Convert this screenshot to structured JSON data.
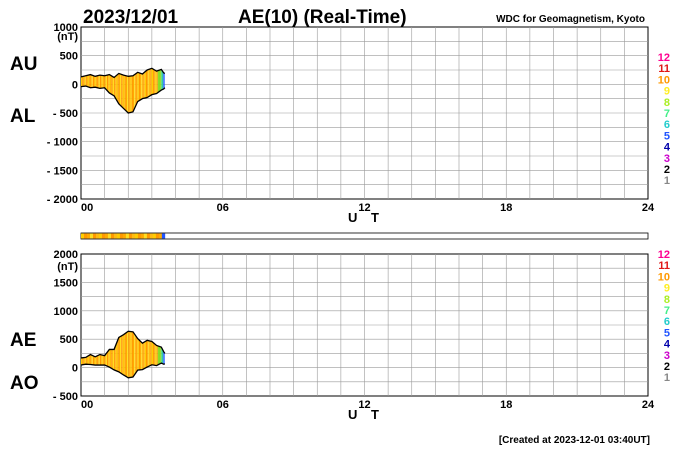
{
  "header": {
    "date": "2023/12/01",
    "title": "AE(10) (Real-Time)",
    "source": "WDC for Geomagnetism, Kyoto"
  },
  "footer": {
    "created": "[Created at 2023-12-01 03:40UT]"
  },
  "station_legend": {
    "labels": [
      "12",
      "11",
      "10",
      "9",
      "8",
      "7",
      "6",
      "5",
      "4",
      "3",
      "2",
      "1"
    ],
    "colors": [
      "#ff0090",
      "#e01818",
      "#ff9900",
      "#ffee22",
      "#aaee22",
      "#44ee88",
      "#22cccc",
      "#2255ff",
      "#0000aa",
      "#cc00cc",
      "#000000",
      "#888888"
    ]
  },
  "chart_data": [
    {
      "type": "area",
      "panel": "AU/AL",
      "labels_upper": "AU",
      "labels_lower": "AL",
      "unit": "(nT)",
      "xlabel": "U T",
      "xlim": [
        0,
        24
      ],
      "ylim": [
        -2000,
        1000
      ],
      "x_ticks": [
        "00",
        "06",
        "12",
        "18",
        "24"
      ],
      "y_ticks": [
        "1000",
        "500",
        "0",
        "- 500",
        "- 1000",
        "- 1500",
        "- 2000"
      ],
      "x": [
        0,
        0.2,
        0.4,
        0.6,
        0.8,
        1.0,
        1.2,
        1.4,
        1.6,
        1.8,
        2.0,
        2.2,
        2.4,
        2.6,
        2.8,
        3.0,
        3.2,
        3.4,
        3.5,
        3.55
      ],
      "au": [
        130,
        150,
        170,
        140,
        160,
        150,
        170,
        120,
        190,
        160,
        140,
        150,
        210,
        180,
        250,
        280,
        230,
        260,
        200,
        190
      ],
      "al": [
        -40,
        -30,
        -60,
        -50,
        -70,
        -60,
        -150,
        -200,
        -340,
        -420,
        -500,
        -480,
        -300,
        -250,
        -230,
        -180,
        -160,
        -100,
        -80,
        -60
      ]
    },
    {
      "type": "area",
      "panel": "AE/AO",
      "labels_upper": "AE",
      "labels_lower": "AO",
      "unit": "(nT)",
      "xlabel": "U T",
      "xlim": [
        0,
        24
      ],
      "ylim": [
        -500,
        2000
      ],
      "x_ticks": [
        "00",
        "06",
        "12",
        "18",
        "24"
      ],
      "y_ticks": [
        "2000",
        "1500",
        "1000",
        "500",
        "0",
        "- 500"
      ],
      "x": [
        0,
        0.2,
        0.4,
        0.6,
        0.8,
        1.0,
        1.2,
        1.4,
        1.6,
        1.8,
        2.0,
        2.2,
        2.4,
        2.6,
        2.8,
        3.0,
        3.2,
        3.4,
        3.5,
        3.55
      ],
      "ae": [
        170,
        180,
        230,
        190,
        230,
        210,
        320,
        320,
        530,
        580,
        640,
        630,
        510,
        430,
        480,
        460,
        390,
        360,
        280,
        250
      ],
      "ao": [
        45,
        60,
        55,
        45,
        45,
        45,
        10,
        -40,
        -75,
        -130,
        -180,
        -165,
        -45,
        -35,
        10,
        50,
        35,
        80,
        60,
        65
      ]
    }
  ]
}
